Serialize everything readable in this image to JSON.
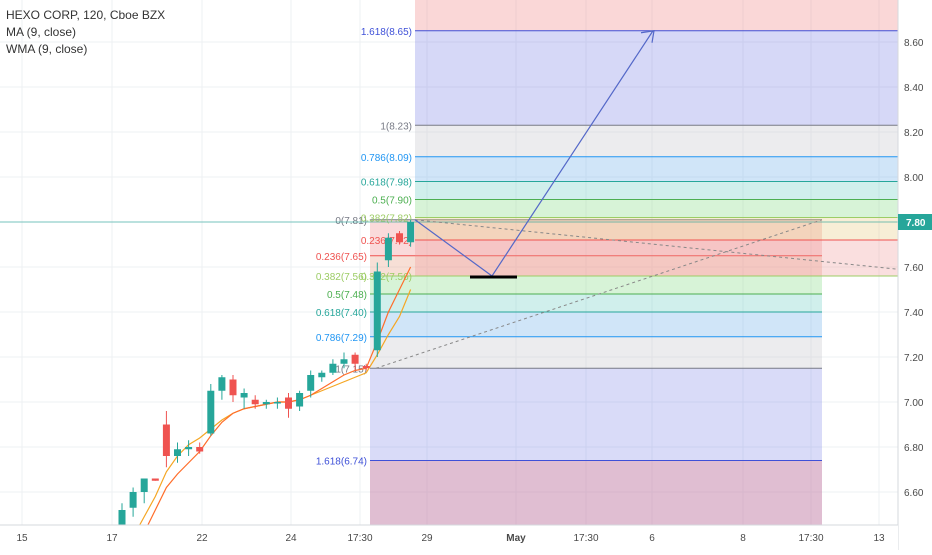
{
  "header": {
    "symbol_line": "HEXO CORP, 120, Cboe BZX",
    "indicators": [
      "MA (9, close)",
      "WMA (9, close)"
    ]
  },
  "colors": {
    "candle_up": "#26a69a",
    "candle_down": "#ef5350",
    "ma_line": "#f5a623",
    "wma_line": "#ff6d2a",
    "arrow": "#5468c8",
    "price_badge": "#26a69a",
    "last_price_line": "#26a69a"
  },
  "chart_data": {
    "type": "candlestick",
    "x_axis_labels": [
      "15",
      "17",
      "22",
      "24",
      "17:30",
      "29",
      "May",
      "17:30",
      "6",
      "8",
      "17:30",
      "13"
    ],
    "y_axis": {
      "ticks": [
        "6.60",
        "6.80",
        "7.00",
        "7.20",
        "7.40",
        "7.60",
        "7.80",
        "8.00",
        "8.20",
        "8.40",
        "8.60"
      ],
      "range": [
        6.46,
        8.78
      ]
    },
    "last_price": "7.80",
    "candles": [
      {
        "o": 6.42,
        "h": 6.55,
        "l": 6.38,
        "c": 6.52
      },
      {
        "o": 6.53,
        "h": 6.62,
        "l": 6.49,
        "c": 6.6
      },
      {
        "o": 6.6,
        "h": 6.66,
        "l": 6.55,
        "c": 6.66
      },
      {
        "o": 6.66,
        "h": 6.66,
        "l": 6.65,
        "c": 6.65
      },
      {
        "o": 6.9,
        "h": 6.96,
        "l": 6.71,
        "c": 6.76
      },
      {
        "o": 6.76,
        "h": 6.82,
        "l": 6.73,
        "c": 6.79
      },
      {
        "o": 6.79,
        "h": 6.83,
        "l": 6.76,
        "c": 6.8
      },
      {
        "o": 6.8,
        "h": 6.82,
        "l": 6.77,
        "c": 6.78
      },
      {
        "o": 6.86,
        "h": 7.08,
        "l": 6.85,
        "c": 7.05
      },
      {
        "o": 7.05,
        "h": 7.12,
        "l": 7.01,
        "c": 7.11
      },
      {
        "o": 7.1,
        "h": 7.12,
        "l": 7.0,
        "c": 7.03
      },
      {
        "o": 7.02,
        "h": 7.06,
        "l": 6.97,
        "c": 7.04
      },
      {
        "o": 7.01,
        "h": 7.03,
        "l": 6.97,
        "c": 6.99
      },
      {
        "o": 6.99,
        "h": 7.01,
        "l": 6.97,
        "c": 7.0
      },
      {
        "o": 7.0,
        "h": 7.02,
        "l": 6.97,
        "c": 7.0
      },
      {
        "o": 7.02,
        "h": 7.04,
        "l": 6.93,
        "c": 6.97
      },
      {
        "o": 6.98,
        "h": 7.05,
        "l": 6.96,
        "c": 7.04
      },
      {
        "o": 7.05,
        "h": 7.14,
        "l": 7.02,
        "c": 7.12
      },
      {
        "o": 7.11,
        "h": 7.14,
        "l": 7.09,
        "c": 7.13
      },
      {
        "o": 7.13,
        "h": 7.19,
        "l": 7.12,
        "c": 7.17
      },
      {
        "o": 7.17,
        "h": 7.22,
        "l": 7.15,
        "c": 7.19
      },
      {
        "o": 7.21,
        "h": 7.22,
        "l": 7.14,
        "c": 7.17
      },
      {
        "o": 7.16,
        "h": 7.17,
        "l": 7.14,
        "c": 7.15
      },
      {
        "o": 7.23,
        "h": 7.62,
        "l": 7.2,
        "c": 7.58
      },
      {
        "o": 7.63,
        "h": 7.75,
        "l": 7.6,
        "c": 7.73
      },
      {
        "o": 7.75,
        "h": 7.76,
        "l": 7.7,
        "c": 7.71
      },
      {
        "o": 7.71,
        "h": 7.81,
        "l": 7.69,
        "c": 7.8
      }
    ],
    "ma": [
      6.32,
      6.4,
      6.49,
      6.58,
      6.69,
      6.76,
      6.81,
      6.84,
      6.88,
      6.92,
      6.95,
      6.97,
      6.98,
      6.99,
      7.0,
      7.0,
      7.01,
      7.03,
      7.05,
      7.07,
      7.09,
      7.11,
      7.13,
      7.21,
      7.3,
      7.38,
      7.5
    ],
    "wma": [
      6.2,
      6.31,
      6.42,
      6.52,
      6.62,
      6.68,
      6.73,
      6.78,
      6.85,
      6.91,
      6.95,
      6.97,
      6.98,
      6.99,
      7.0,
      7.0,
      7.01,
      7.03,
      7.06,
      7.09,
      7.12,
      7.14,
      7.15,
      7.27,
      7.4,
      7.5,
      7.6
    ],
    "fib_retracement": {
      "levels": [
        {
          "label": "1(7.15)",
          "value": 7.15,
          "color": "#787b86"
        },
        {
          "label": "0.786(7.29)",
          "value": 7.29,
          "color": "#2196f3"
        },
        {
          "label": "0.618(7.40)",
          "value": 7.4,
          "color": "#26a69a"
        },
        {
          "label": "0.5(7.48)",
          "value": 7.48,
          "color": "#4caf50"
        },
        {
          "label": "0.382(7.56)",
          "value": 7.56,
          "color": "#9ccc65"
        },
        {
          "label": "0.236(7.65)",
          "value": 7.65,
          "color": "#ef5350"
        },
        {
          "label": "0(7.81)",
          "value": 7.81,
          "color": "#787b86"
        }
      ],
      "extension": {
        "label": "1.618(6.74)",
        "value": 6.74,
        "color": "#3f51d8"
      }
    },
    "fib_upper": {
      "levels": [
        {
          "label": "1.618(8.65)",
          "value": 8.65,
          "color": "#3f51d8"
        },
        {
          "label": "1(8.23)",
          "value": 8.23,
          "color": "#787b86"
        },
        {
          "label": "0.786(8.09)",
          "value": 8.09,
          "color": "#2196f3"
        },
        {
          "label": "0.618(7.98)",
          "value": 7.98,
          "color": "#26a69a"
        },
        {
          "label": "0.5(7.90)",
          "value": 7.9,
          "color": "#4caf50"
        },
        {
          "label": "0.382(7.82)",
          "value": 7.82,
          "color": "#9ccc65"
        },
        {
          "label": "0.236(7.72)",
          "value": 7.72,
          "color": "#ef5350"
        },
        {
          "label": "0.382(7.56)",
          "value": 7.56,
          "color": "#9ccc65"
        }
      ]
    },
    "projection": {
      "start": 7.81,
      "mid": 7.56,
      "target": 8.65
    }
  }
}
